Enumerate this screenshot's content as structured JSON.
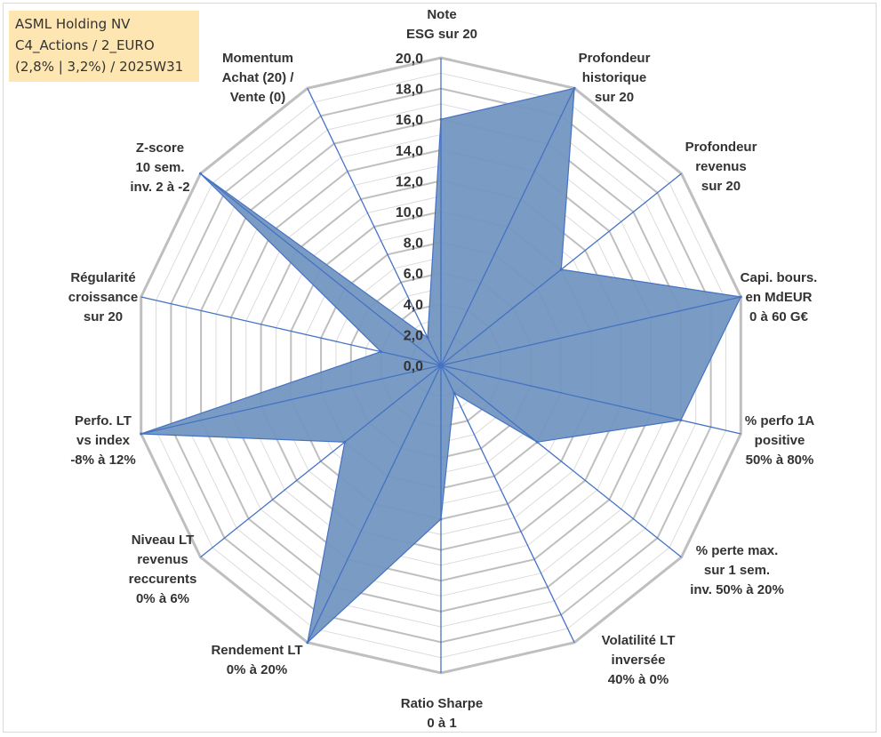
{
  "title_box": {
    "line1": "ASML Holding NV",
    "line2": "C4_Actions / 2_EURO",
    "line3": "(2,8% | 3,2%) / 2025W31"
  },
  "colors": {
    "fill": "#7396c0",
    "stroke": "#4472c4",
    "grid_major": "#bfbfbf",
    "grid_minor": "#dcdcdc",
    "spoke": "#4472c4",
    "title_bg": "#fde6b2"
  },
  "chart_data": {
    "type": "radar",
    "r_min": 0,
    "r_max": 20,
    "ticks": [
      "0,0",
      "2,0",
      "4,0",
      "6,0",
      "8,0",
      "10,0",
      "12,0",
      "14,0",
      "16,0",
      "18,0",
      "20,0"
    ],
    "tick_values": [
      0,
      2,
      4,
      6,
      8,
      10,
      12,
      14,
      16,
      18,
      20
    ],
    "categories": [
      [
        "Note",
        "ESG sur 20"
      ],
      [
        "Profondeur",
        "historique",
        "sur 20"
      ],
      [
        "Profondeur",
        "revenus",
        "sur 20"
      ],
      [
        "Capi. bours.",
        "en MdEUR",
        "0 à 60 G€"
      ],
      [
        "% perfo 1A",
        "positive",
        "50% à 80%"
      ],
      [
        "% perte max.",
        "sur 1 sem.",
        "inv. 50% à 20%"
      ],
      [
        "Volatilité LT",
        "inversée",
        "40% à 0%"
      ],
      [
        "Ratio Sharpe",
        "0 à 1"
      ],
      [
        "Rendement LT",
        "0% à 20%"
      ],
      [
        "Niveau LT",
        "revenus",
        "reccurents",
        "0% à 6%"
      ],
      [
        "Perfo. LT",
        "vs index",
        "-8% à 12%"
      ],
      [
        "Régularité",
        "croissance",
        "sur 20"
      ],
      [
        "Z-score",
        "10 sem.",
        "inv. 2 à -2"
      ],
      [
        "Momentum",
        "Achat (20) /",
        "Vente (0)"
      ]
    ],
    "values": [
      16,
      20,
      10,
      20,
      16,
      8,
      2,
      10,
      20,
      8,
      20,
      4,
      20,
      2
    ],
    "grid": true,
    "legend": "none"
  }
}
